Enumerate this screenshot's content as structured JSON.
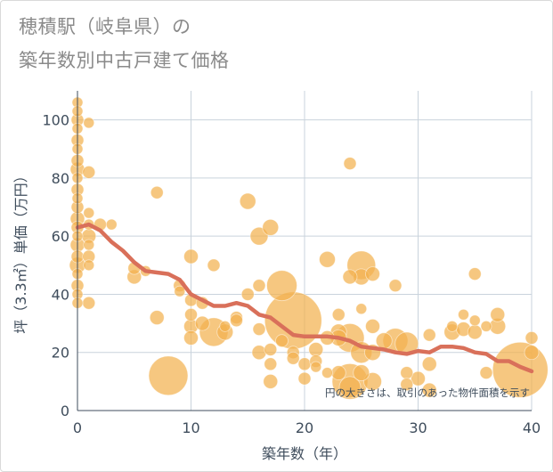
{
  "title": {
    "line1": "穂積駅（岐阜県）の",
    "line2": "築年数別中古戸建て価格"
  },
  "chart_data": {
    "type": "scatter",
    "title": "穂積駅（岐阜県）の築年数別中古戸建て価格",
    "xlabel": "築年数（年）",
    "ylabel": "坪（3.3㎡）単価（万円）",
    "xlim": [
      0,
      40
    ],
    "ylim": [
      0,
      110
    ],
    "xticks": [
      0,
      10,
      20,
      30,
      40
    ],
    "yticks": [
      0,
      20,
      40,
      60,
      80,
      100
    ],
    "grid": true,
    "annotation": "円の大きさは、取引のあった物件面積を示す",
    "colors": {
      "bubble": "#f2b14f",
      "trend": "#d9705a",
      "grid": "#c9d3dc",
      "axis": "#5a6a7a"
    },
    "bubbles": [
      {
        "x": 0,
        "y": 106,
        "s": 6
      },
      {
        "x": 0,
        "y": 103,
        "s": 6
      },
      {
        "x": 0,
        "y": 100,
        "s": 7
      },
      {
        "x": 0,
        "y": 97,
        "s": 6
      },
      {
        "x": 0,
        "y": 93,
        "s": 7
      },
      {
        "x": 0,
        "y": 90,
        "s": 6
      },
      {
        "x": 0,
        "y": 86,
        "s": 7
      },
      {
        "x": 0,
        "y": 83,
        "s": 8
      },
      {
        "x": 0,
        "y": 80,
        "s": 6
      },
      {
        "x": 0,
        "y": 76,
        "s": 7
      },
      {
        "x": 0,
        "y": 73,
        "s": 6
      },
      {
        "x": 0,
        "y": 70,
        "s": 7
      },
      {
        "x": 0,
        "y": 66,
        "s": 8
      },
      {
        "x": 0,
        "y": 63,
        "s": 7
      },
      {
        "x": 0,
        "y": 60,
        "s": 6
      },
      {
        "x": 0,
        "y": 57,
        "s": 8
      },
      {
        "x": 0,
        "y": 53,
        "s": 7
      },
      {
        "x": 0,
        "y": 50,
        "s": 9
      },
      {
        "x": 0,
        "y": 47,
        "s": 6
      },
      {
        "x": 0,
        "y": 43,
        "s": 7
      },
      {
        "x": 0,
        "y": 40,
        "s": 6
      },
      {
        "x": 0,
        "y": 37,
        "s": 6
      },
      {
        "x": 1,
        "y": 99,
        "s": 6
      },
      {
        "x": 1,
        "y": 82,
        "s": 7
      },
      {
        "x": 1,
        "y": 68,
        "s": 6
      },
      {
        "x": 1,
        "y": 64,
        "s": 6
      },
      {
        "x": 1,
        "y": 60,
        "s": 8
      },
      {
        "x": 1,
        "y": 57,
        "s": 6
      },
      {
        "x": 1,
        "y": 53,
        "s": 7
      },
      {
        "x": 1,
        "y": 50,
        "s": 6
      },
      {
        "x": 1,
        "y": 37,
        "s": 7
      },
      {
        "x": 2,
        "y": 64,
        "s": 7
      },
      {
        "x": 3,
        "y": 64,
        "s": 6
      },
      {
        "x": 5,
        "y": 49,
        "s": 7
      },
      {
        "x": 5,
        "y": 46,
        "s": 8
      },
      {
        "x": 6,
        "y": 48,
        "s": 6
      },
      {
        "x": 7,
        "y": 75,
        "s": 7
      },
      {
        "x": 7,
        "y": 32,
        "s": 8
      },
      {
        "x": 8,
        "y": 12,
        "s": 22
      },
      {
        "x": 9,
        "y": 43,
        "s": 7
      },
      {
        "x": 9,
        "y": 41,
        "s": 6
      },
      {
        "x": 10,
        "y": 53,
        "s": 8
      },
      {
        "x": 10,
        "y": 38,
        "s": 7
      },
      {
        "x": 10,
        "y": 33,
        "s": 7
      },
      {
        "x": 10,
        "y": 29,
        "s": 8
      },
      {
        "x": 10,
        "y": 25,
        "s": 8
      },
      {
        "x": 11,
        "y": 37,
        "s": 7
      },
      {
        "x": 11,
        "y": 30,
        "s": 8
      },
      {
        "x": 12,
        "y": 50,
        "s": 7
      },
      {
        "x": 12,
        "y": 27,
        "s": 16
      },
      {
        "x": 13,
        "y": 27,
        "s": 9
      },
      {
        "x": 13,
        "y": 29,
        "s": 6
      },
      {
        "x": 14,
        "y": 32,
        "s": 7
      },
      {
        "x": 14,
        "y": 31,
        "s": 7
      },
      {
        "x": 15,
        "y": 72,
        "s": 9
      },
      {
        "x": 15,
        "y": 40,
        "s": 7
      },
      {
        "x": 16,
        "y": 60,
        "s": 10
      },
      {
        "x": 16,
        "y": 43,
        "s": 7
      },
      {
        "x": 16,
        "y": 28,
        "s": 7
      },
      {
        "x": 16,
        "y": 20,
        "s": 8
      },
      {
        "x": 17,
        "y": 63,
        "s": 9
      },
      {
        "x": 17,
        "y": 21,
        "s": 7
      },
      {
        "x": 17,
        "y": 16,
        "s": 7
      },
      {
        "x": 17,
        "y": 10,
        "s": 8
      },
      {
        "x": 18,
        "y": 43,
        "s": 17
      },
      {
        "x": 18,
        "y": 24,
        "s": 7
      },
      {
        "x": 19,
        "y": 31,
        "s": 32
      },
      {
        "x": 19,
        "y": 20,
        "s": 7
      },
      {
        "x": 19,
        "y": 18,
        "s": 7
      },
      {
        "x": 20,
        "y": 16,
        "s": 7
      },
      {
        "x": 20,
        "y": 11,
        "s": 7
      },
      {
        "x": 21,
        "y": 21,
        "s": 8
      },
      {
        "x": 21,
        "y": 17,
        "s": 7
      },
      {
        "x": 21,
        "y": 15,
        "s": 6
      },
      {
        "x": 22,
        "y": 52,
        "s": 9
      },
      {
        "x": 22,
        "y": 25,
        "s": 8
      },
      {
        "x": 22,
        "y": 13,
        "s": 6
      },
      {
        "x": 23,
        "y": 33,
        "s": 7
      },
      {
        "x": 23,
        "y": 27,
        "s": 9
      },
      {
        "x": 23,
        "y": 25,
        "s": 9
      },
      {
        "x": 23,
        "y": 13,
        "s": 8
      },
      {
        "x": 24,
        "y": 85,
        "s": 7
      },
      {
        "x": 24,
        "y": 46,
        "s": 8
      },
      {
        "x": 24,
        "y": 25,
        "s": 16
      },
      {
        "x": 24,
        "y": 10,
        "s": 20
      },
      {
        "x": 24,
        "y": 8,
        "s": 12
      },
      {
        "x": 25,
        "y": 50,
        "s": 16
      },
      {
        "x": 25,
        "y": 46,
        "s": 9
      },
      {
        "x": 25,
        "y": 35,
        "s": 6
      },
      {
        "x": 25,
        "y": 20,
        "s": 12
      },
      {
        "x": 25,
        "y": 13,
        "s": 9
      },
      {
        "x": 26,
        "y": 47,
        "s": 8
      },
      {
        "x": 26,
        "y": 29,
        "s": 8
      },
      {
        "x": 26,
        "y": 20,
        "s": 9
      },
      {
        "x": 26,
        "y": 10,
        "s": 10
      },
      {
        "x": 27,
        "y": 24,
        "s": 9
      },
      {
        "x": 28,
        "y": 43,
        "s": 7
      },
      {
        "x": 28,
        "y": 24,
        "s": 14
      },
      {
        "x": 29,
        "y": 23,
        "s": 13
      },
      {
        "x": 29,
        "y": 13,
        "s": 7
      },
      {
        "x": 29,
        "y": 9,
        "s": 7
      },
      {
        "x": 30,
        "y": 11,
        "s": 8
      },
      {
        "x": 31,
        "y": 26,
        "s": 7
      },
      {
        "x": 31,
        "y": 16,
        "s": 8
      },
      {
        "x": 31,
        "y": 7,
        "s": 8
      },
      {
        "x": 33,
        "y": 29,
        "s": 6
      },
      {
        "x": 33,
        "y": 27,
        "s": 9
      },
      {
        "x": 34,
        "y": 33,
        "s": 6
      },
      {
        "x": 34,
        "y": 28,
        "s": 8
      },
      {
        "x": 35,
        "y": 47,
        "s": 7
      },
      {
        "x": 35,
        "y": 31,
        "s": 6
      },
      {
        "x": 35,
        "y": 27,
        "s": 8
      },
      {
        "x": 36,
        "y": 29,
        "s": 6
      },
      {
        "x": 36,
        "y": 13,
        "s": 7
      },
      {
        "x": 37,
        "y": 33,
        "s": 8
      },
      {
        "x": 37,
        "y": 29,
        "s": 9
      },
      {
        "x": 39,
        "y": 14,
        "s": 31
      },
      {
        "x": 40,
        "y": 25,
        "s": 7
      },
      {
        "x": 40,
        "y": 20,
        "s": 8
      }
    ],
    "trend": {
      "x": [
        0,
        1,
        2,
        3,
        4,
        5,
        6,
        7,
        8,
        9,
        10,
        11,
        12,
        13,
        14,
        15,
        16,
        17,
        18,
        19,
        20,
        21,
        22,
        23,
        24,
        25,
        26,
        27,
        28,
        29,
        30,
        31,
        32,
        33,
        34,
        35,
        36,
        37,
        38,
        39,
        40
      ],
      "y": [
        63,
        64,
        62,
        58,
        55,
        51,
        48,
        47.5,
        47,
        45,
        40,
        38,
        36,
        36,
        37,
        36,
        33,
        32,
        29,
        26,
        25.5,
        25.5,
        25.5,
        25,
        24,
        22,
        21.5,
        21,
        20,
        19.5,
        20.5,
        20,
        22,
        22,
        21.5,
        20,
        19.5,
        17,
        17,
        15,
        13.5
      ]
    }
  }
}
